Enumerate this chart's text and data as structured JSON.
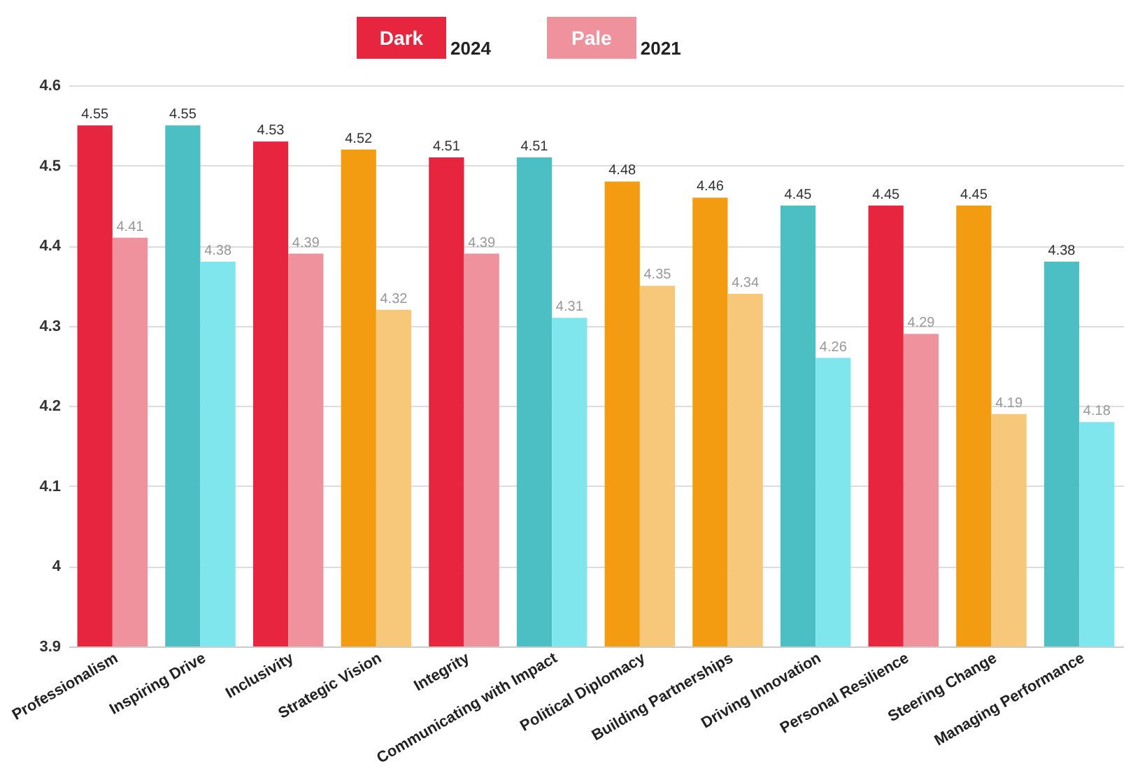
{
  "chart_data": {
    "type": "bar",
    "categories": [
      "Professionalism",
      "Inspiring Drive",
      "Inclusivity",
      "Strategic Vision",
      "Integrity",
      "Communicating with Impact",
      "Political Diplomacy",
      "Building Partnerships",
      "Driving Innovation",
      "Personal Resilience",
      "Steering Change",
      "Managing Performance"
    ],
    "series": [
      {
        "name": "2024",
        "color": "#e8253f",
        "colors": [
          "#e8253f",
          "#4bbfc4",
          "#e8253f",
          "#f39c12",
          "#e8253f",
          "#4bbfc4",
          "#f39c12",
          "#f39c12",
          "#4bbfc4",
          "#e8253f",
          "#f39c12",
          "#4bbfc4"
        ],
        "values": [
          4.55,
          4.55,
          4.53,
          4.52,
          4.51,
          4.51,
          4.48,
          4.46,
          4.45,
          4.45,
          4.45,
          4.38
        ]
      },
      {
        "name": "2021",
        "color": "#f0929e",
        "colors": [
          "#f0929e",
          "#80e6ee",
          "#f0929e",
          "#f8c87a",
          "#f0929e",
          "#80e6ee",
          "#f8c87a",
          "#f8c87a",
          "#80e6ee",
          "#f0929e",
          "#f8c87a",
          "#80e6ee"
        ],
        "values": [
          4.41,
          4.38,
          4.39,
          4.32,
          4.39,
          4.31,
          4.35,
          4.34,
          4.26,
          4.29,
          4.19,
          4.18
        ]
      }
    ],
    "annotations": [
      "Dark",
      "Pale"
    ],
    "ylim": [
      3.9,
      4.6
    ],
    "yticks": [
      3.9,
      4,
      4.1,
      4.2,
      4.3,
      4.4,
      4.5,
      4.6
    ],
    "grid": "y",
    "legend": "top",
    "data_labels": true
  }
}
